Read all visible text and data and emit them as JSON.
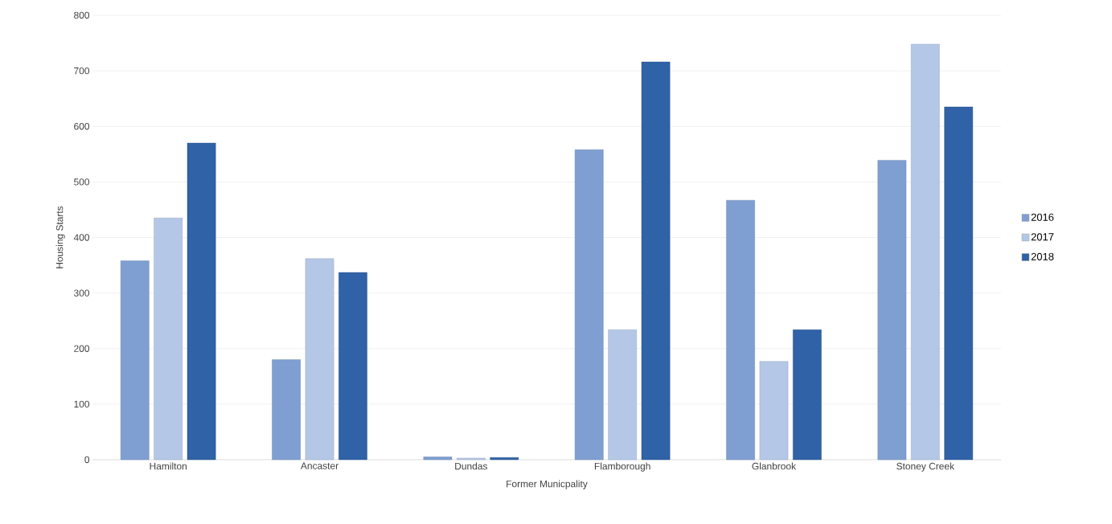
{
  "chart_data": {
    "type": "bar",
    "xlabel": "Former Municpality",
    "ylabel": "Housing Starts",
    "categories": [
      "Hamilton",
      "Ancaster",
      "Dundas",
      "Flamborough",
      "Glanbrook",
      "Stoney Creek"
    ],
    "series": [
      {
        "name": "2016",
        "color": "#7f9fd2",
        "values": [
          358,
          180,
          5,
          558,
          467,
          539
        ]
      },
      {
        "name": "2017",
        "color": "#b4c7e7",
        "values": [
          435,
          362,
          3,
          234,
          177,
          748
        ]
      },
      {
        "name": "2018",
        "color": "#2f62a6",
        "values": [
          570,
          337,
          4,
          716,
          234,
          635
        ]
      }
    ],
    "ylim": [
      0,
      800
    ],
    "yticks": [
      0,
      100,
      200,
      300,
      400,
      500,
      600,
      700,
      800
    ],
    "grid": "y",
    "legend": "right"
  }
}
